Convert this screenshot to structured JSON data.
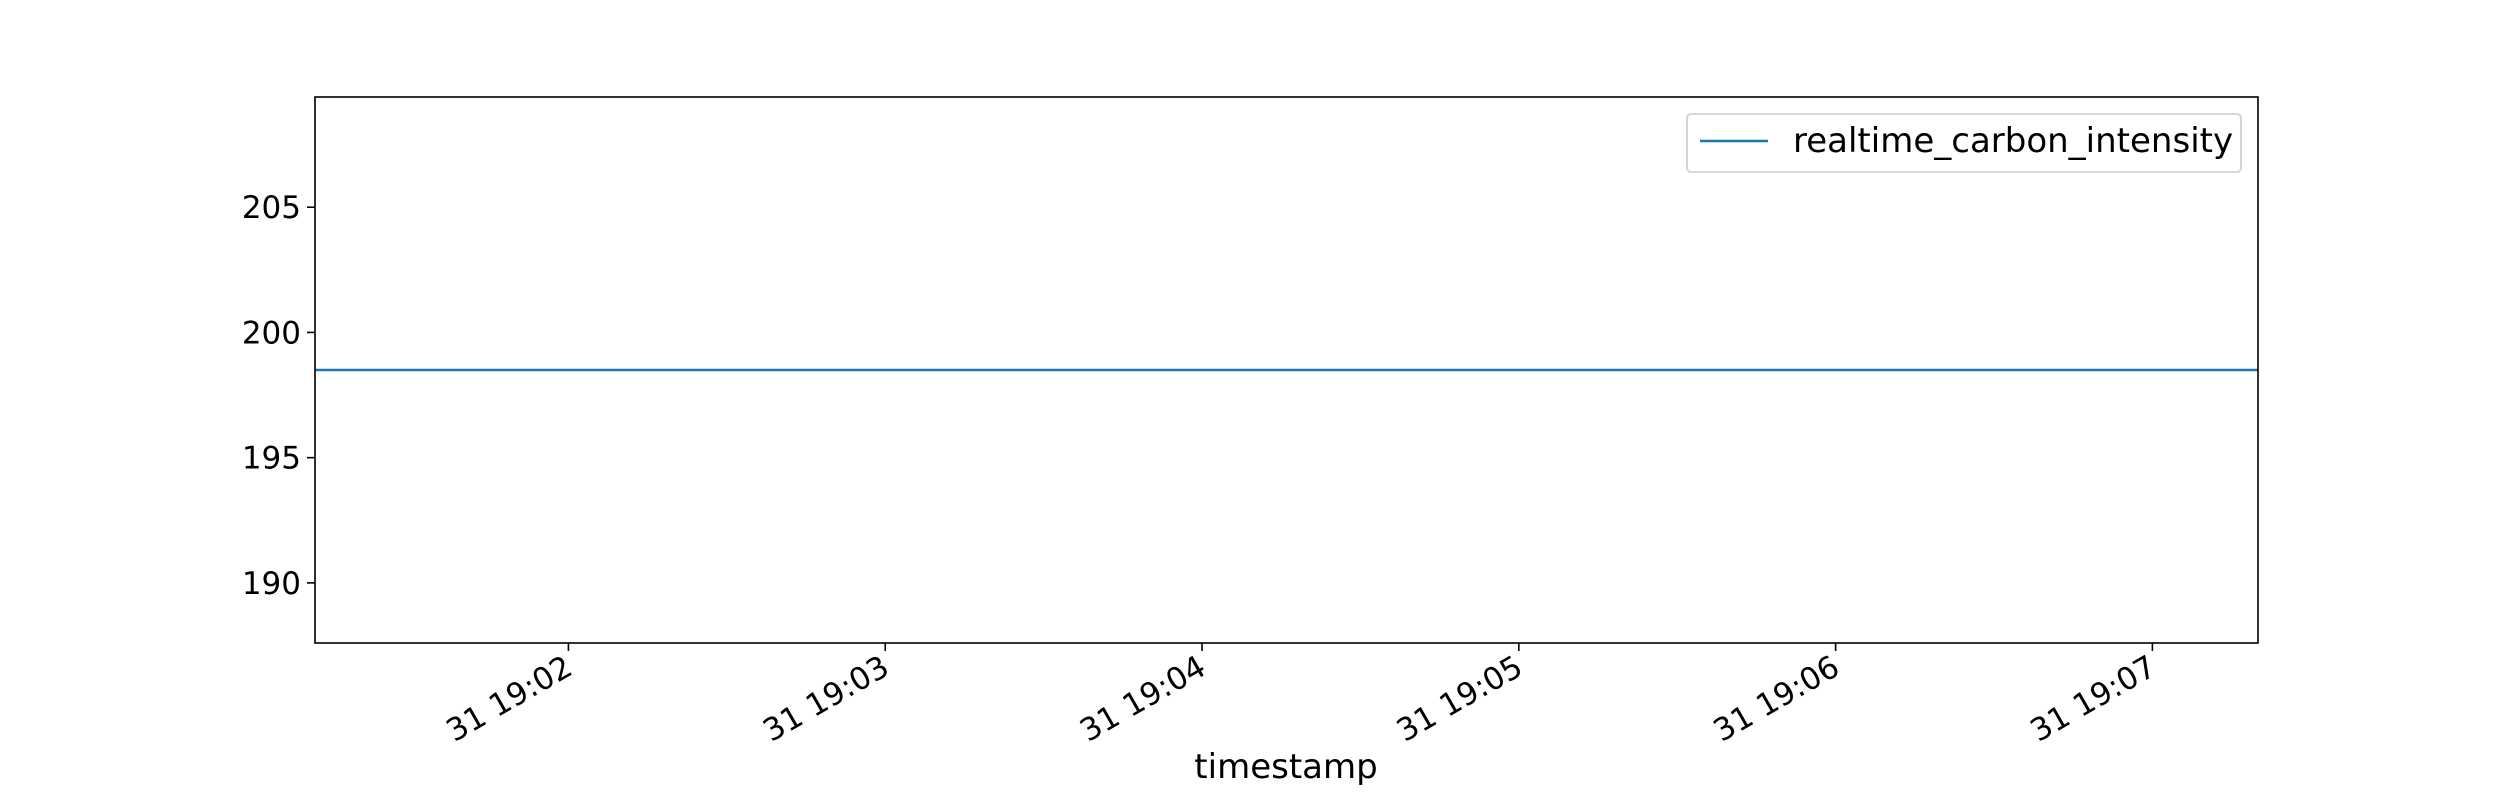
{
  "chart_data": {
    "type": "line",
    "title": "",
    "xlabel": "timestamp",
    "ylabel": "",
    "x_ticks": [
      "31 19:02",
      "31 19:03",
      "31 19:04",
      "31 19:05",
      "31 19:06",
      "31 19:07"
    ],
    "y_ticks": [
      190,
      195,
      200,
      205
    ],
    "ylim": [
      187.6,
      209.4
    ],
    "xlim": [
      "31 19:01:12",
      "31 19:07:20"
    ],
    "series": [
      {
        "name": "realtime_carbon_intensity",
        "color": "#1f77b4",
        "x": [
          "31 19:01:12",
          "31 19:07:20"
        ],
        "y": [
          198.5,
          198.5
        ]
      }
    ],
    "legend": "top-right",
    "grid": false
  }
}
